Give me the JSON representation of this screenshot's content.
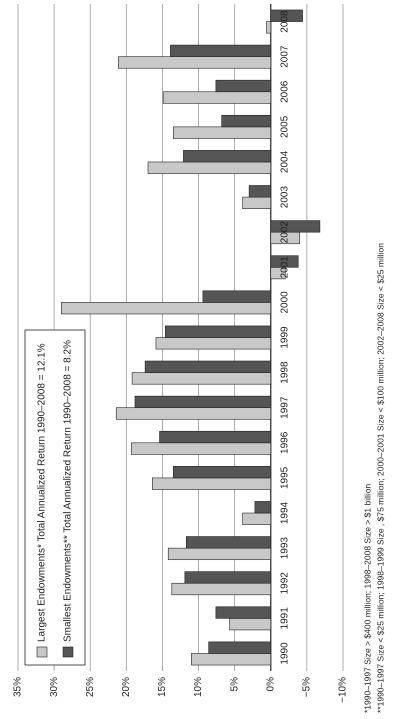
{
  "chart_data": {
    "type": "bar",
    "categories": [
      "1990",
      "1991",
      "1992",
      "1993",
      "1994",
      "1995",
      "1996",
      "1997",
      "1998",
      "1999",
      "2000",
      "2001",
      "2002",
      "2003",
      "2004",
      "2005",
      "2006",
      "2007",
      "2008"
    ],
    "series": [
      {
        "name": "Largest Endowments* Total Annualized Return 1990–2008 = 12.1%",
        "color": "#c8c8c8",
        "values": [
          11.0,
          5.7,
          13.7,
          14.2,
          3.9,
          16.4,
          19.3,
          21.4,
          19.2,
          15.9,
          29.0,
          -2.0,
          -4.0,
          3.9,
          17.0,
          13.5,
          14.9,
          21.1,
          0.6
        ]
      },
      {
        "name": "Smallest Endowments** Total Annualized Return 1990–2008 = 8.2%",
        "color": "#555555",
        "values": [
          8.6,
          7.6,
          11.9,
          11.7,
          2.2,
          13.5,
          15.4,
          18.8,
          17.4,
          14.6,
          9.4,
          -3.8,
          -6.8,
          3.0,
          12.1,
          6.8,
          7.6,
          13.9,
          -4.4
        ]
      }
    ],
    "ylim": [
      -10,
      35
    ],
    "yticks": [
      {
        "value": 35,
        "label": "35%"
      },
      {
        "value": 30,
        "label": "30%"
      },
      {
        "value": 25,
        "label": "25%"
      },
      {
        "value": 20,
        "label": "20%"
      },
      {
        "value": 15,
        "label": "15%"
      },
      {
        "value": 10,
        "label": "10%"
      },
      {
        "value": 5,
        "label": "5%"
      },
      {
        "value": 0,
        "label": "0%"
      },
      {
        "value": -5,
        "label": "−5%"
      },
      {
        "value": -10,
        "label": "−10%"
      }
    ],
    "grid": true,
    "legend": "upper left",
    "notes": [
      "*1990–1997 Size > $400 million; 1998–2008 Size > $1 billion",
      "**1990–1997 Size < $25 million; 1998–1999 Size , $75 million; 2000–2001 Size < $100 million; 2002–2008 Size < $25 million"
    ]
  }
}
